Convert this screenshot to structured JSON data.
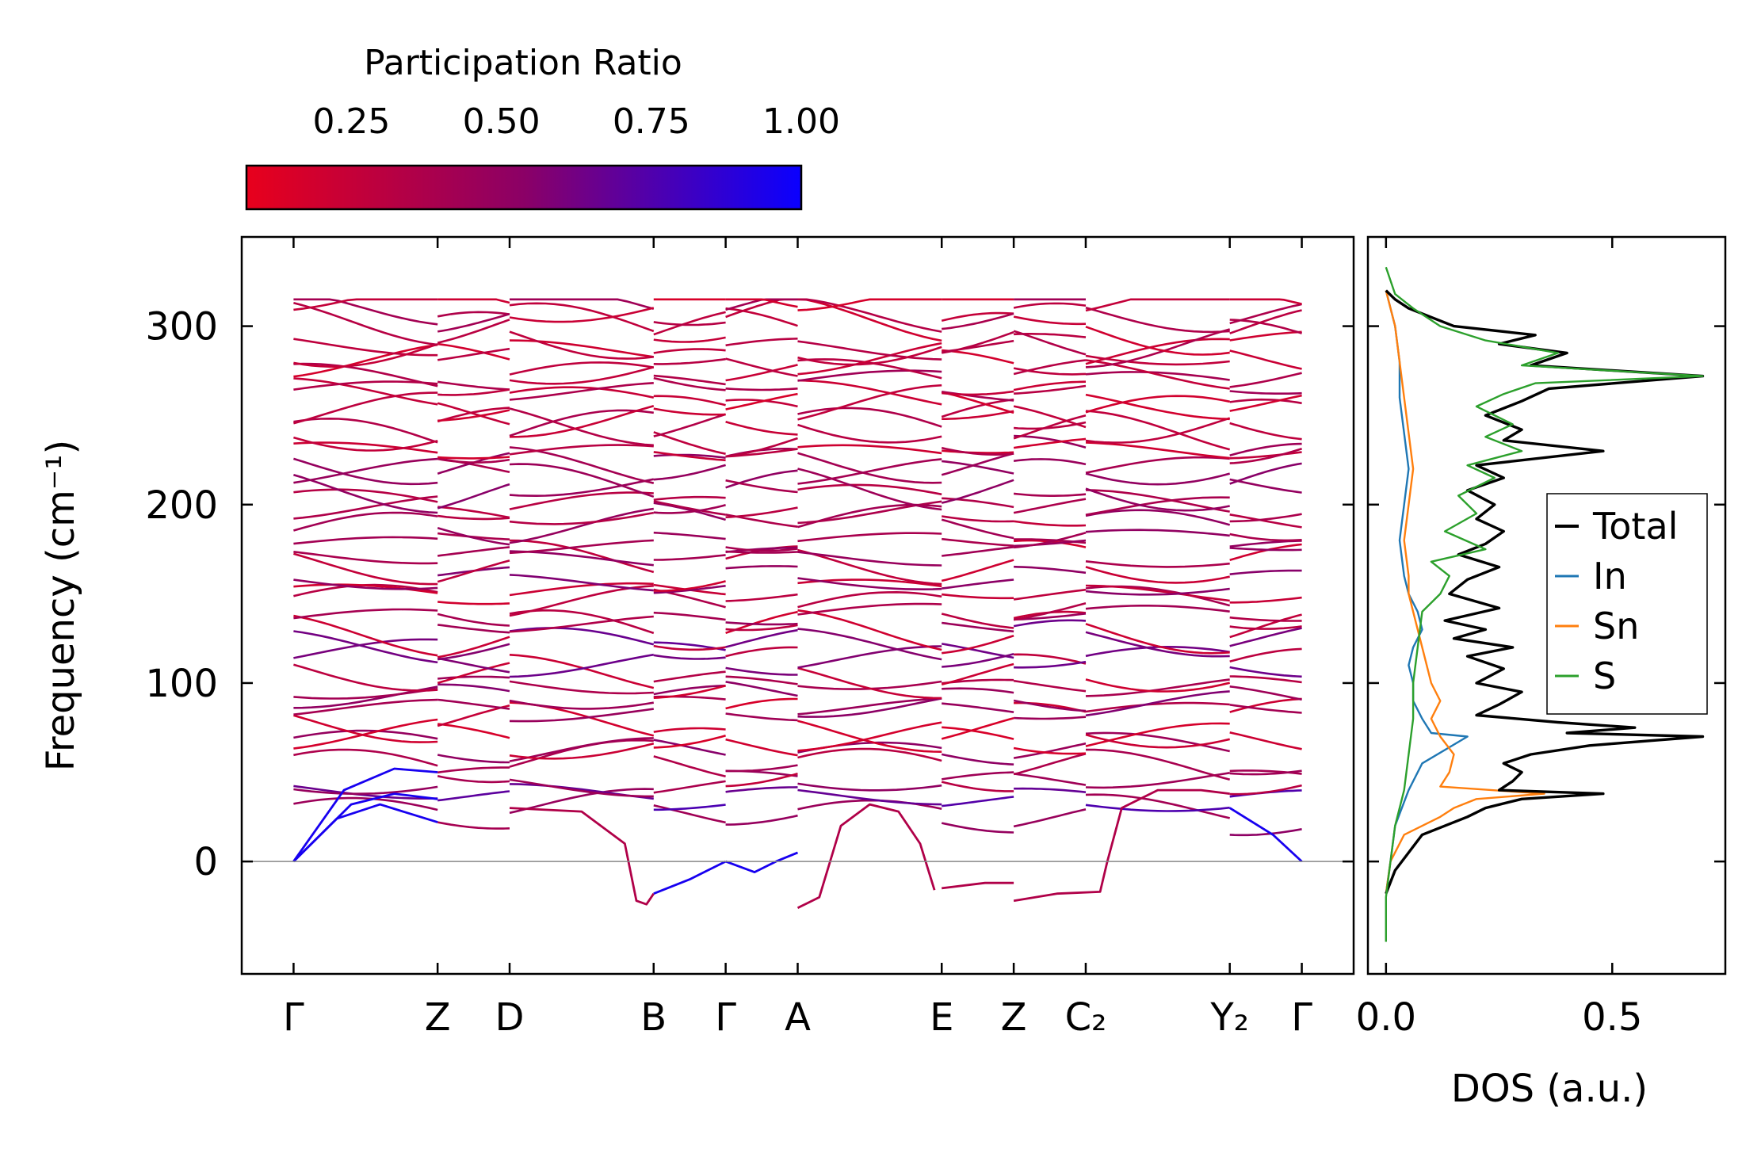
{
  "colorbar": {
    "title": "Participation Ratio",
    "ticks": [
      "0.25",
      "0.50",
      "0.75",
      "1.00"
    ],
    "tick_values": [
      0.25,
      0.5,
      0.75,
      1.0
    ],
    "range": [
      0.075,
      1.0
    ],
    "color_low": "#e8001c",
    "color_mid": "#8b0066",
    "color_high": "#0a00ff"
  },
  "chart_data": [
    {
      "type": "line",
      "name": "phonon-band-structure",
      "ylabel": "Frequency (cm⁻¹)",
      "ylim": [
        -63,
        350
      ],
      "yticks": [
        0,
        100,
        200,
        300
      ],
      "ytick_labels": [
        "0",
        "100",
        "200",
        "300"
      ],
      "kpath_labels": [
        "Γ",
        "Z",
        "D",
        "B",
        "Γ",
        "A",
        "E",
        "Z",
        "C₂",
        "Y₂",
        "Γ"
      ],
      "kpath_positions": [
        0,
        1,
        1.5,
        2.5,
        3,
        3.5,
        4.5,
        5,
        5.5,
        6.5,
        7
      ],
      "xlim": [
        -0.36,
        7.36
      ],
      "zero_line": true,
      "acoustic_branches": [
        {
          "name": "acoustic-1",
          "x": [
            0,
            0.3,
            0.6,
            1.0
          ],
          "y": [
            0,
            24,
            32,
            22
          ]
        },
        {
          "name": "acoustic-2",
          "x": [
            0,
            0.4,
            0.7,
            1.0
          ],
          "y": [
            0,
            32,
            38,
            35
          ]
        },
        {
          "name": "acoustic-3",
          "x": [
            0,
            0.35,
            0.7,
            1.0
          ],
          "y": [
            0,
            40,
            52,
            50
          ]
        },
        {
          "name": "soft-mode-DB",
          "x": [
            1.5,
            2.0,
            2.3,
            2.38,
            2.45,
            2.5
          ],
          "y": [
            30,
            28,
            10,
            -22,
            -24,
            -18
          ]
        },
        {
          "name": "acoustic-BG",
          "x": [
            2.5,
            2.75,
            3.0
          ],
          "y": [
            -18,
            -10,
            0
          ]
        },
        {
          "name": "acoustic-GA",
          "x": [
            3.0,
            3.2,
            3.35,
            3.5
          ],
          "y": [
            0,
            -6,
            0,
            5
          ]
        },
        {
          "name": "soft-mode-AE",
          "x": [
            3.5,
            3.65,
            3.8,
            4.0,
            4.2,
            4.35,
            4.45
          ],
          "y": [
            -26,
            -20,
            20,
            32,
            28,
            10,
            -16
          ]
        },
        {
          "name": "soft-mode-EZ",
          "x": [
            4.5,
            4.8,
            5.0
          ],
          "y": [
            -15,
            -12,
            -12
          ]
        },
        {
          "name": "soft-mode-ZC2",
          "x": [
            5.0,
            5.3,
            5.6,
            5.65,
            5.75,
            6.0,
            6.3,
            6.5
          ],
          "y": [
            -22,
            -18,
            -17,
            0,
            30,
            40,
            40,
            38
          ]
        },
        {
          "name": "acoustic-Y2G",
          "x": [
            6.5,
            6.8,
            7.0
          ],
          "y": [
            30,
            15,
            0
          ]
        }
      ],
      "optical_band_count": 40,
      "optical_range": [
        28,
        315
      ]
    },
    {
      "type": "line",
      "name": "phonon-dos",
      "xlabel": "DOS (a.u.)",
      "xlim": [
        -0.04,
        0.75
      ],
      "xticks": [
        0.0,
        0.5
      ],
      "xtick_labels": [
        "0.0",
        "0.5"
      ],
      "ylim": [
        -63,
        350
      ],
      "legend_position": "center-right",
      "series": [
        {
          "name": "Total",
          "color": "#000000",
          "freq": [
            -18,
            -5,
            5,
            15,
            25,
            30,
            35,
            38,
            40,
            45,
            50,
            55,
            60,
            65,
            70,
            72,
            75,
            78,
            82,
            88,
            95,
            100,
            108,
            115,
            120,
            125,
            130,
            135,
            142,
            150,
            158,
            165,
            172,
            178,
            185,
            192,
            200,
            208,
            215,
            222,
            230,
            236,
            242,
            250,
            258,
            265,
            272,
            278,
            285,
            290,
            295,
            300,
            305,
            310,
            315,
            320
          ],
          "values": [
            0.0,
            0.02,
            0.05,
            0.08,
            0.18,
            0.22,
            0.3,
            0.48,
            0.25,
            0.28,
            0.3,
            0.26,
            0.32,
            0.45,
            0.7,
            0.4,
            0.55,
            0.38,
            0.2,
            0.25,
            0.3,
            0.2,
            0.26,
            0.18,
            0.28,
            0.15,
            0.22,
            0.13,
            0.25,
            0.14,
            0.18,
            0.25,
            0.16,
            0.22,
            0.26,
            0.2,
            0.24,
            0.18,
            0.26,
            0.2,
            0.48,
            0.26,
            0.3,
            0.22,
            0.3,
            0.36,
            0.7,
            0.32,
            0.4,
            0.25,
            0.33,
            0.15,
            0.1,
            0.05,
            0.02,
            0.0
          ]
        },
        {
          "name": "In",
          "color": "#1f77b4",
          "freq": [
            -18,
            0,
            20,
            40,
            55,
            70,
            72,
            80,
            90,
            100,
            110,
            120,
            130,
            140,
            150,
            160,
            180,
            200,
            220,
            240,
            260,
            280,
            300,
            320
          ],
          "values": [
            0.0,
            0.01,
            0.02,
            0.05,
            0.08,
            0.18,
            0.1,
            0.08,
            0.06,
            0.06,
            0.05,
            0.06,
            0.08,
            0.07,
            0.05,
            0.04,
            0.03,
            0.04,
            0.05,
            0.04,
            0.03,
            0.03,
            0.02,
            0.0
          ]
        },
        {
          "name": "Sn",
          "color": "#ff7f0e",
          "freq": [
            -18,
            0,
            15,
            25,
            30,
            35,
            38,
            42,
            50,
            60,
            70,
            80,
            90,
            100,
            110,
            120,
            130,
            140,
            150,
            160,
            180,
            200,
            220,
            240,
            260,
            280,
            300,
            320
          ],
          "values": [
            0.0,
            0.01,
            0.04,
            0.12,
            0.15,
            0.2,
            0.35,
            0.12,
            0.14,
            0.15,
            0.12,
            0.1,
            0.12,
            0.1,
            0.09,
            0.08,
            0.07,
            0.06,
            0.05,
            0.05,
            0.04,
            0.05,
            0.06,
            0.05,
            0.04,
            0.03,
            0.02,
            0.0
          ]
        },
        {
          "name": "S",
          "color": "#2ca02c",
          "freq": [
            -45,
            -20,
            0,
            20,
            40,
            60,
            80,
            100,
            120,
            140,
            150,
            160,
            168,
            175,
            185,
            195,
            205,
            215,
            222,
            230,
            238,
            245,
            255,
            262,
            268,
            272,
            278,
            285,
            292,
            300,
            310,
            318,
            333
          ],
          "values": [
            0.0,
            0.0,
            0.01,
            0.02,
            0.04,
            0.05,
            0.06,
            0.06,
            0.07,
            0.08,
            0.12,
            0.14,
            0.1,
            0.22,
            0.13,
            0.2,
            0.16,
            0.24,
            0.18,
            0.3,
            0.22,
            0.28,
            0.2,
            0.26,
            0.33,
            0.7,
            0.3,
            0.38,
            0.22,
            0.12,
            0.06,
            0.02,
            0.0
          ]
        }
      ]
    }
  ]
}
